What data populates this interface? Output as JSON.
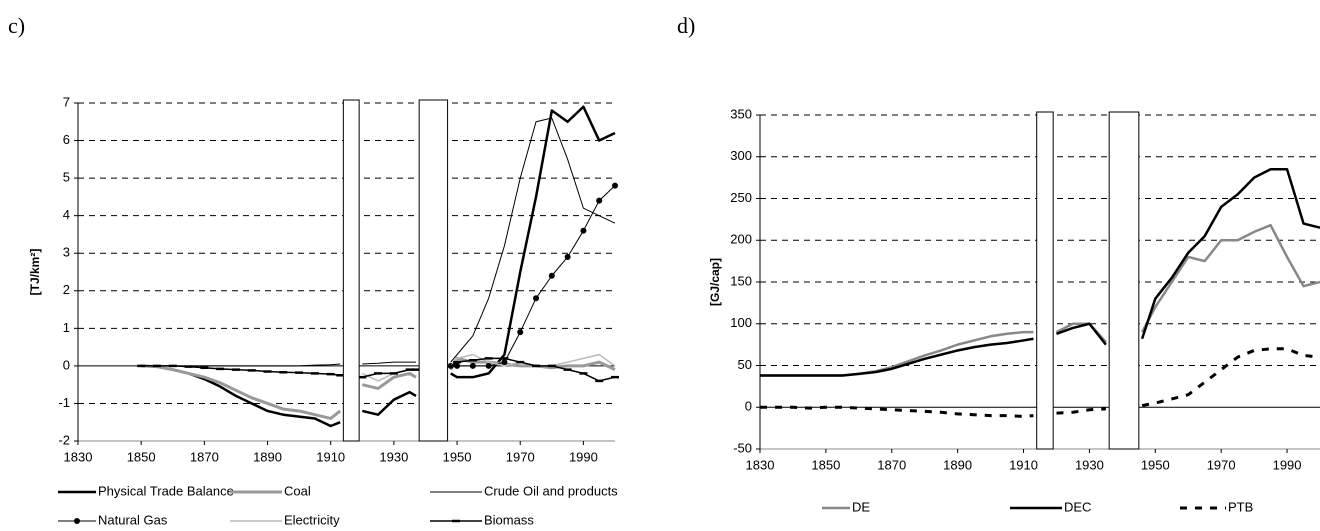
{
  "chart_data": [
    {
      "type": "line",
      "panel": "c)",
      "ylabel": "[TJ/km²]",
      "xlim": [
        1830,
        2000
      ],
      "xticks": [
        1830,
        1850,
        1870,
        1890,
        1910,
        1930,
        1950,
        1970,
        1990
      ],
      "ylim": [
        -2,
        7
      ],
      "yticks": [
        -2,
        -1,
        0,
        1,
        2,
        3,
        4,
        5,
        6,
        7
      ],
      "grid": true,
      "gaps": [
        [
          1914,
          1919
        ],
        [
          1938,
          1947
        ]
      ],
      "x": [
        1850,
        1855,
        1860,
        1865,
        1870,
        1875,
        1880,
        1885,
        1890,
        1895,
        1900,
        1905,
        1910,
        1913,
        1916,
        1920,
        1925,
        1930,
        1935,
        1937,
        1942,
        1948,
        1950,
        1955,
        1960,
        1965,
        1970,
        1975,
        1980,
        1985,
        1990,
        1995,
        2000
      ],
      "series": [
        {
          "name": "Physical Trade Balance",
          "color": "#000000",
          "width": 2.5,
          "values": [
            0,
            -0.02,
            -0.1,
            -0.2,
            -0.35,
            -0.55,
            -0.8,
            -1.0,
            -1.2,
            -1.3,
            -1.35,
            -1.4,
            -1.6,
            -1.5,
            null,
            -1.2,
            -1.3,
            -0.9,
            -0.7,
            -0.8,
            null,
            -0.2,
            -0.3,
            -0.3,
            -0.2,
            0.3,
            2.5,
            4.5,
            6.8,
            6.5,
            6.9,
            6.0,
            6.2
          ]
        },
        {
          "name": "Coal",
          "color": "#999999",
          "width": 3,
          "values": [
            0,
            -0.02,
            -0.1,
            -0.2,
            -0.3,
            -0.45,
            -0.65,
            -0.85,
            -1.0,
            -1.15,
            -1.2,
            -1.3,
            -1.4,
            -1.2,
            null,
            -0.5,
            -0.6,
            -0.3,
            -0.2,
            -0.3,
            null,
            -0.1,
            0.2,
            0.1,
            0.1,
            0.05,
            0,
            0,
            -0.05,
            0,
            0,
            0.1,
            -0.1
          ]
        },
        {
          "name": "Crude Oil and products",
          "color": "#000000",
          "width": 1,
          "values": [
            0,
            0,
            0,
            0,
            0,
            0,
            0,
            0,
            0,
            0,
            0,
            0.02,
            0.03,
            0.05,
            null,
            0.05,
            0.07,
            0.1,
            0.1,
            0.1,
            null,
            0.1,
            0.3,
            0.8,
            1.8,
            3.2,
            5.0,
            6.5,
            6.6,
            5.5,
            4.2,
            4.0,
            3.8
          ]
        },
        {
          "name": "Natural Gas",
          "color": "#000000",
          "width": 1,
          "marker": "circle",
          "values": [
            null,
            null,
            null,
            null,
            null,
            null,
            null,
            null,
            null,
            null,
            null,
            null,
            null,
            null,
            null,
            null,
            null,
            null,
            null,
            null,
            null,
            0,
            0,
            0,
            0,
            0.1,
            0.9,
            1.8,
            2.4,
            2.9,
            3.6,
            4.4,
            4.8
          ]
        },
        {
          "name": "Electricity",
          "color": "#bbbbbb",
          "width": 1.5,
          "values": [
            null,
            null,
            null,
            null,
            null,
            null,
            null,
            null,
            null,
            null,
            null,
            null,
            null,
            null,
            null,
            -0.2,
            -0.4,
            -0.2,
            -0.1,
            -0.1,
            null,
            0,
            0.2,
            0.3,
            0.1,
            0.0,
            0.1,
            0.0,
            0.0,
            0.1,
            0.2,
            0.3,
            0.0
          ]
        },
        {
          "name": "Biomass",
          "color": "#000000",
          "width": 1.5,
          "marker": "dash",
          "values": [
            0,
            0,
            0,
            -0.02,
            -0.05,
            -0.08,
            -0.1,
            -0.12,
            -0.15,
            -0.17,
            -0.18,
            -0.2,
            -0.22,
            -0.25,
            null,
            -0.3,
            -0.2,
            -0.2,
            -0.1,
            -0.1,
            null,
            0,
            0.1,
            0.15,
            0.2,
            0.2,
            0.1,
            0,
            0,
            -0.1,
            -0.2,
            -0.4,
            -0.3
          ]
        }
      ]
    },
    {
      "type": "line",
      "panel": "d)",
      "ylabel": "[GJ/cap]",
      "xlim": [
        1830,
        2000
      ],
      "xticks": [
        1830,
        1850,
        1870,
        1890,
        1910,
        1930,
        1950,
        1970,
        1990
      ],
      "ylim": [
        -50,
        350
      ],
      "yticks": [
        -50,
        0,
        50,
        100,
        150,
        200,
        250,
        300,
        350
      ],
      "grid": true,
      "gaps": [
        [
          1914,
          1919
        ],
        [
          1936,
          1945
        ]
      ],
      "x": [
        1830,
        1835,
        1840,
        1845,
        1850,
        1855,
        1860,
        1865,
        1870,
        1875,
        1880,
        1885,
        1890,
        1895,
        1900,
        1905,
        1910,
        1913,
        1916,
        1920,
        1925,
        1930,
        1935,
        1940,
        1946,
        1950,
        1955,
        1960,
        1965,
        1970,
        1975,
        1980,
        1985,
        1990,
        1995,
        2000
      ],
      "series": [
        {
          "name": "DE",
          "color": "#888888",
          "width": 2.5,
          "values": [
            38,
            38,
            38,
            38,
            38,
            38,
            40,
            43,
            48,
            55,
            62,
            68,
            75,
            80,
            85,
            88,
            90,
            90,
            null,
            90,
            100,
            100,
            78,
            null,
            90,
            120,
            150,
            180,
            175,
            200,
            200,
            210,
            218,
            180,
            145,
            150
          ]
        },
        {
          "name": "DEC",
          "color": "#000000",
          "width": 2.5,
          "values": [
            38,
            38,
            38,
            38,
            38,
            38,
            40,
            42,
            46,
            52,
            58,
            63,
            68,
            72,
            75,
            77,
            80,
            82,
            null,
            88,
            95,
            100,
            75,
            null,
            82,
            130,
            155,
            185,
            205,
            240,
            255,
            275,
            285,
            285,
            220,
            215
          ]
        },
        {
          "name": "PTB",
          "color": "#000000",
          "width": 3,
          "dash": true,
          "values": [
            0,
            0,
            0,
            -1,
            0,
            0,
            -1,
            -2,
            -3,
            -4,
            -5,
            -6,
            -8,
            -9,
            -10,
            -10,
            -11,
            -10,
            null,
            -7,
            -6,
            -3,
            -2,
            null,
            2,
            5,
            10,
            15,
            30,
            45,
            60,
            68,
            70,
            70,
            62,
            60
          ]
        }
      ]
    }
  ]
}
